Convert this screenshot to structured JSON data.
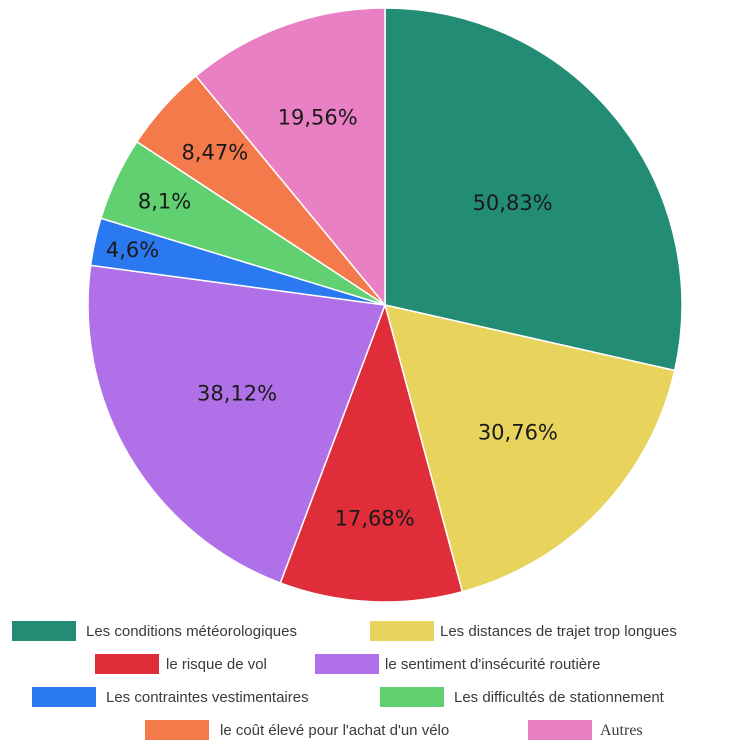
{
  "chart_data": {
    "type": "pie",
    "categories": [
      "Les conditions météorologiques",
      "Les distances de trajet trop longues",
      "le risque de vol",
      "le sentiment d'insécurité routière",
      "Les contraintes vestimentaires",
      "Les difficultés de stationnement",
      "le coût élevé pour l'achat d'un vélo",
      "Autres"
    ],
    "values": [
      50.83,
      30.76,
      17.68,
      38.12,
      4.6,
      8.1,
      8.47,
      19.56
    ],
    "value_labels": [
      "50,83%",
      "30,76%",
      "17,68%",
      "38,12%",
      "4,6%",
      "8,1%",
      "8,47%",
      "19,56%"
    ],
    "colors": [
      "#238c74",
      "#e8d35c",
      "#e02d3a",
      "#b070e8",
      "#2a79f0",
      "#60d070",
      "#f47a4c",
      "#ea80c4"
    ],
    "legend_position": "bottom",
    "start_angle": "12 o'clock",
    "direction": "clockwise"
  }
}
